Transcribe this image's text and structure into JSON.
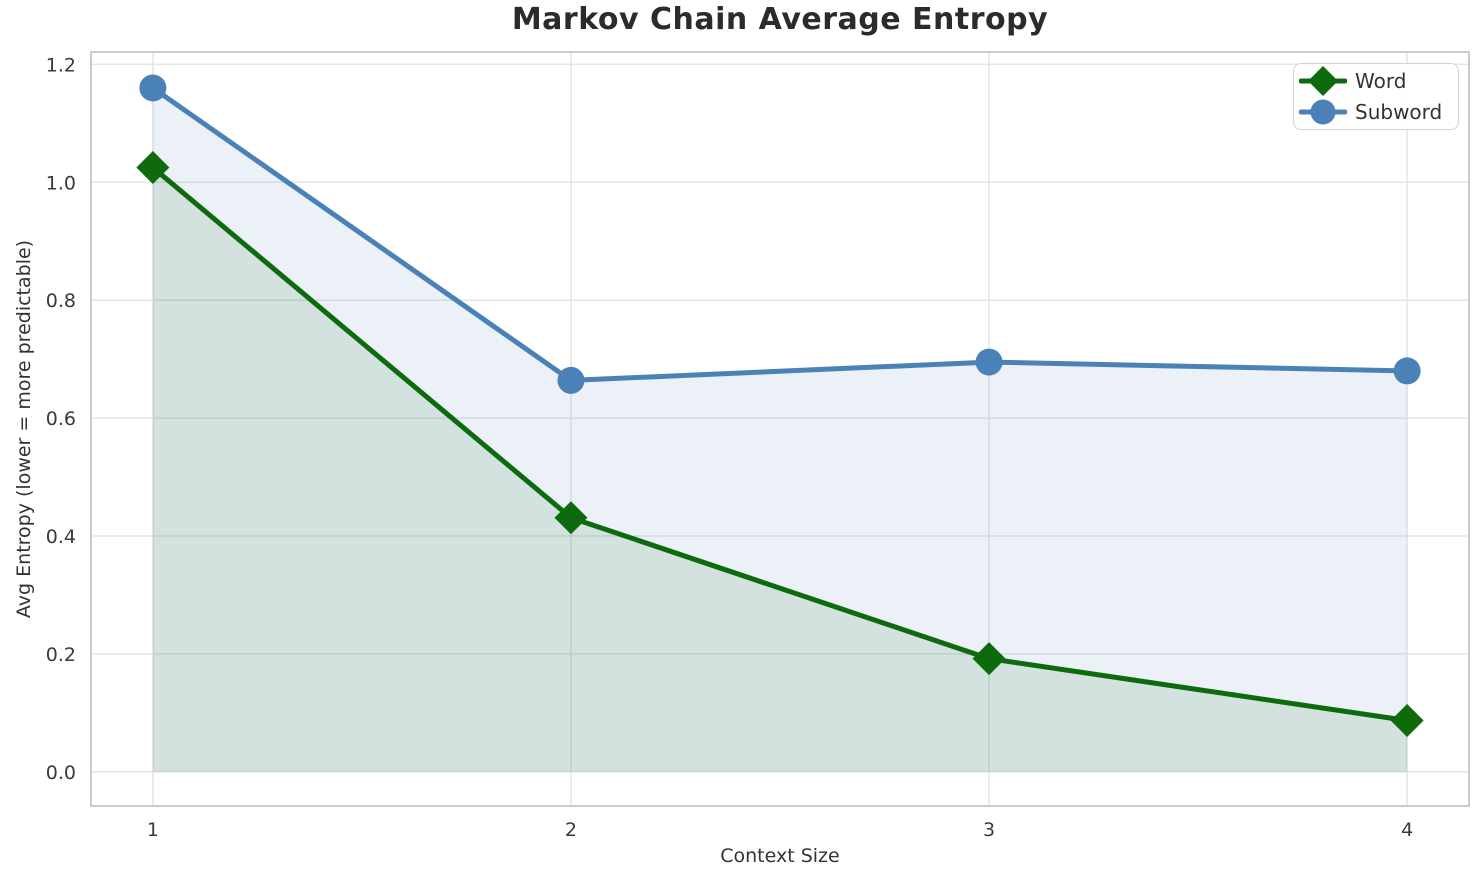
{
  "chart_data": {
    "type": "line",
    "title": "Markov Chain Average Entropy",
    "xlabel": "Context Size",
    "ylabel": "Avg Entropy (lower = more predictable)",
    "x": [
      1,
      2,
      3,
      4
    ],
    "series": [
      {
        "name": "Word",
        "values": [
          1.025,
          0.431,
          0.192,
          0.087
        ],
        "color": "#0d6b0d",
        "marker": "diamond",
        "area_fill": true,
        "fill_alpha": 0.11
      },
      {
        "name": "Subword",
        "values": [
          1.16,
          0.664,
          0.695,
          0.68
        ],
        "color": "#4a82b8",
        "marker": "circle",
        "area_fill": true,
        "fill_alpha": 0.11
      }
    ],
    "xticks": [
      "1",
      "2",
      "3",
      "4"
    ],
    "yticks": [
      "0.0",
      "0.2",
      "0.4",
      "0.6",
      "0.8",
      "1.0",
      "1.2"
    ],
    "xlim": [
      0.852,
      4.148
    ],
    "ylim": [
      -0.058,
      1.221
    ],
    "grid": true,
    "legend_position": "upper right"
  },
  "style_colors": {
    "grid": "#e5e5e5",
    "spine": "#cbcbcb",
    "tick_text": "#3a3a3a"
  }
}
